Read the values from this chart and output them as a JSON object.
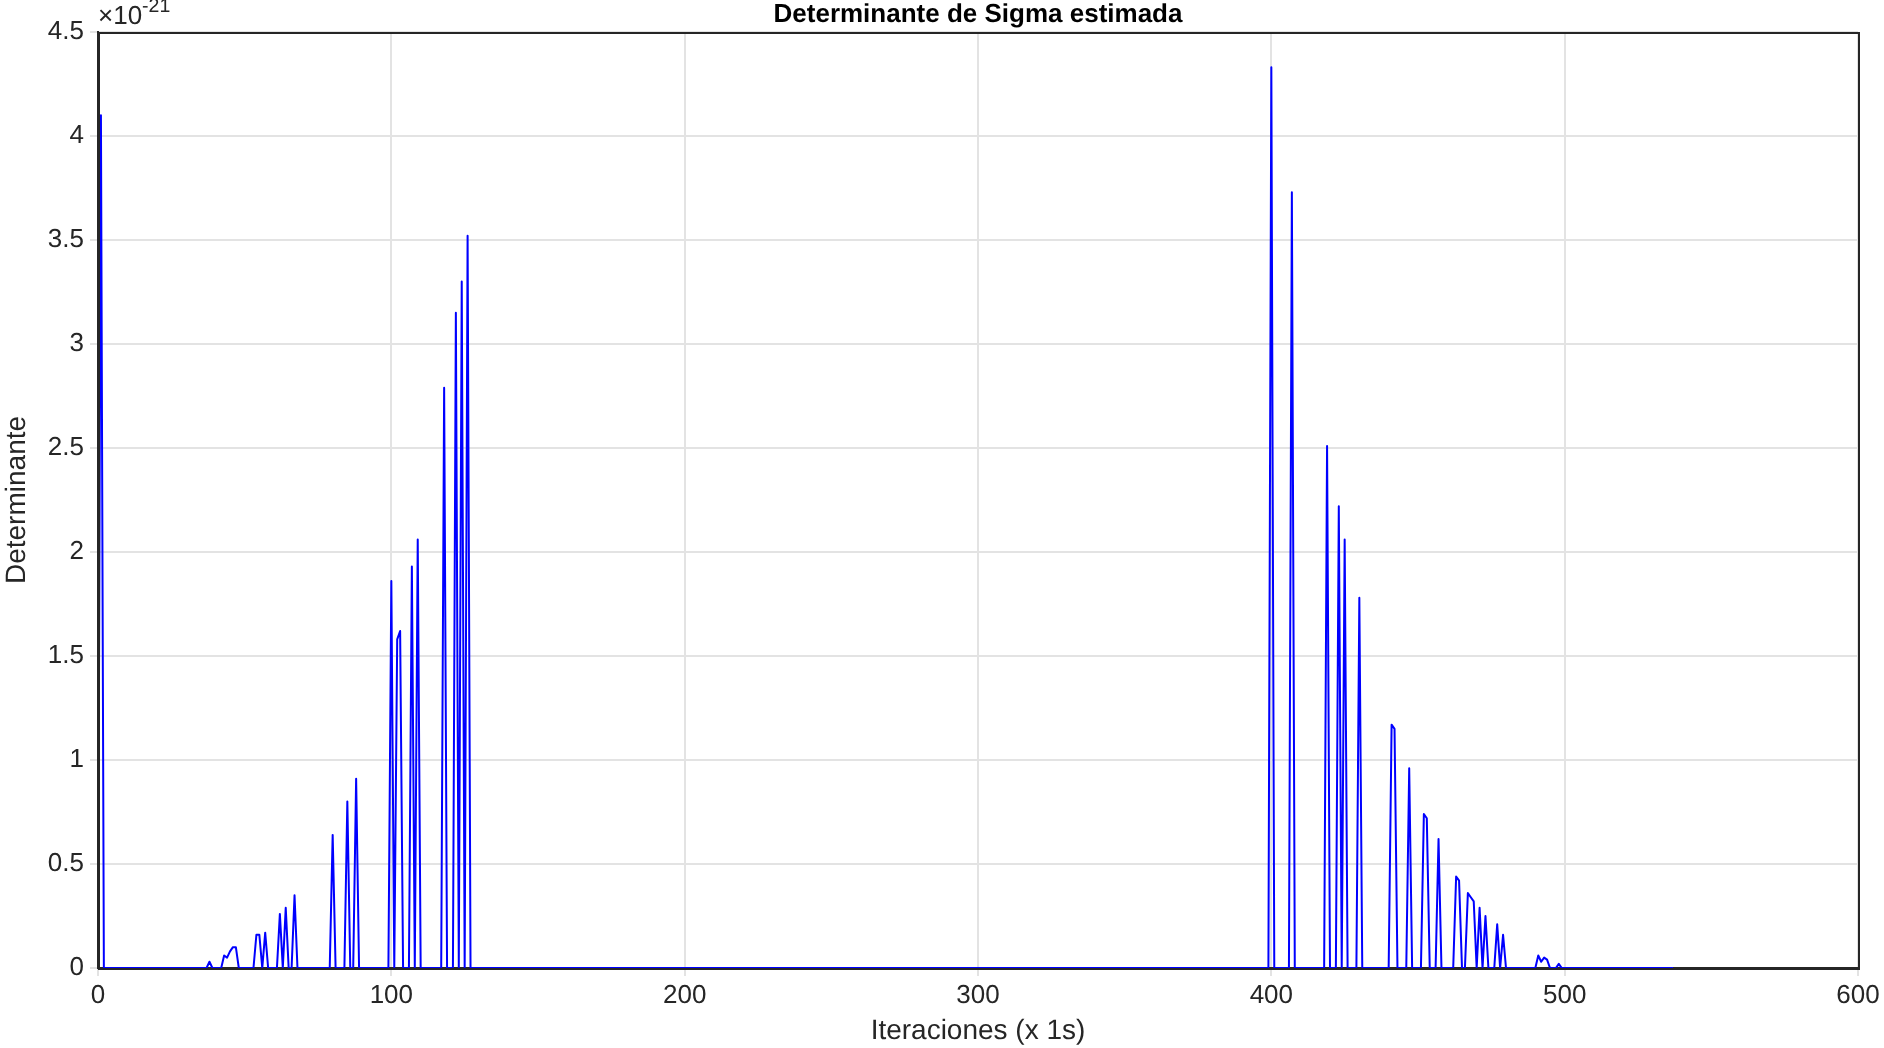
{
  "chart_data": {
    "type": "line",
    "title": "Determinante de Sigma estimada",
    "xlabel": "Iteraciones (x 1s)",
    "ylabel": "Determinante",
    "annotations": [
      "×10$^{-21}$"
    ],
    "xlim": [
      0,
      600
    ],
    "xticks": [
      0,
      100,
      200,
      300,
      400,
      500,
      600
    ],
    "ylim": [
      0,
      4.5
    ],
    "yticks": [
      0,
      0.5,
      1,
      1.5,
      2,
      2.5,
      3,
      3.5,
      4,
      4.5
    ],
    "grid": true,
    "legend": false,
    "marker": "none",
    "line_style": "solid",
    "series": [
      {
        "color": "#0000ff",
        "x": [
          0,
          1,
          2,
          37,
          38,
          39,
          42,
          43,
          44,
          45,
          46,
          47,
          48,
          53,
          54,
          55,
          56,
          57,
          58,
          61,
          62,
          63,
          64,
          65,
          66,
          67,
          68,
          79,
          80,
          81,
          84,
          85,
          86,
          87,
          88,
          89,
          99,
          100,
          101,
          102,
          103,
          104,
          106,
          107,
          108,
          109,
          110,
          117,
          118,
          119,
          121,
          122,
          123,
          124,
          125,
          126,
          127,
          399,
          400,
          401,
          406,
          407,
          408,
          418,
          419,
          420,
          422,
          423,
          424,
          425,
          426,
          429,
          430,
          431,
          440,
          441,
          442,
          443,
          446,
          447,
          448,
          451,
          452,
          453,
          454,
          456,
          457,
          458,
          462,
          463,
          464,
          465,
          466,
          467,
          468,
          469,
          470,
          471,
          472,
          473,
          474,
          476,
          477,
          478,
          479,
          480,
          490,
          491,
          492,
          493,
          494,
          495,
          497,
          498,
          499,
          537
        ],
        "values": [
          0,
          4.1,
          0,
          0,
          0.03,
          0,
          0,
          0.06,
          0.05,
          0.08,
          0.1,
          0.1,
          0,
          0,
          0.16,
          0.16,
          0,
          0.17,
          0,
          0,
          0.26,
          0,
          0.29,
          0,
          0,
          0.35,
          0,
          0,
          0.64,
          0,
          0,
          0.8,
          0,
          0,
          0.91,
          0,
          0,
          1.86,
          0,
          1.58,
          1.62,
          0,
          0,
          1.93,
          0,
          2.06,
          0,
          0,
          2.79,
          0,
          0,
          3.15,
          0,
          3.3,
          0,
          3.52,
          0,
          0,
          4.33,
          0,
          0,
          3.73,
          0,
          0,
          2.51,
          0,
          0,
          2.22,
          0,
          2.06,
          0,
          0,
          1.78,
          0,
          0,
          1.17,
          1.15,
          0,
          0,
          0.96,
          0,
          0,
          0.74,
          0.72,
          0,
          0,
          0.62,
          0,
          0,
          0.44,
          0.42,
          0,
          0,
          0.36,
          0.34,
          0.32,
          0,
          0.29,
          0,
          0.25,
          0,
          0,
          0.21,
          0,
          0.16,
          0,
          0,
          0.06,
          0.03,
          0.05,
          0.04,
          0,
          0,
          0.02,
          0,
          0
        ]
      }
    ]
  }
}
